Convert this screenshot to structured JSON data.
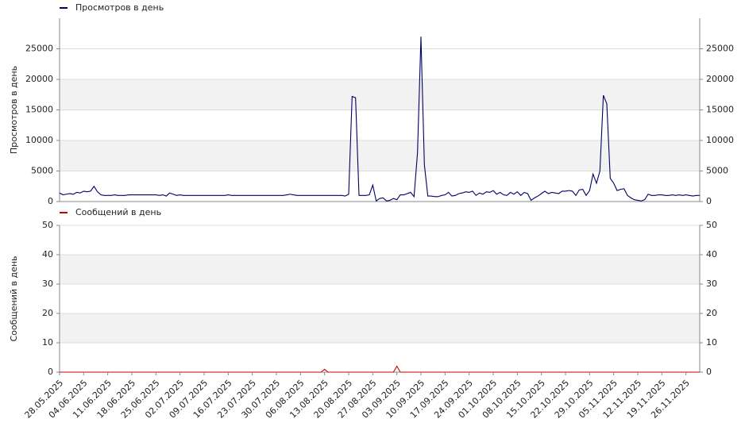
{
  "chart_data": {
    "type": "line",
    "categories": [
      "28.05.2025",
      null,
      null,
      null,
      null,
      null,
      null,
      "04.06.2025",
      null,
      null,
      null,
      null,
      null,
      null,
      "11.06.2025",
      null,
      null,
      null,
      null,
      null,
      null,
      "18.06.2025",
      null,
      null,
      null,
      null,
      null,
      null,
      "25.06.2025",
      null,
      null,
      null,
      null,
      null,
      null,
      "02.07.2025",
      null,
      null,
      null,
      null,
      null,
      null,
      "09.07.2025",
      null,
      null,
      null,
      null,
      null,
      null,
      "16.07.2025",
      null,
      null,
      null,
      null,
      null,
      null,
      "23.07.2025",
      null,
      null,
      null,
      null,
      null,
      null,
      "30.07.2025",
      null,
      null,
      null,
      null,
      null,
      null,
      "06.08.2025",
      null,
      null,
      null,
      null,
      null,
      null,
      "13.08.2025",
      null,
      null,
      null,
      null,
      null,
      null,
      "20.08.2025",
      null,
      null,
      null,
      null,
      null,
      null,
      "27.08.2025",
      null,
      null,
      null,
      null,
      null,
      null,
      "03.09.2025",
      null,
      null,
      null,
      null,
      null,
      null,
      "10.09.2025",
      null,
      null,
      null,
      null,
      null,
      null,
      "17.09.2025",
      null,
      null,
      null,
      null,
      null,
      null,
      "24.09.2025",
      null,
      null,
      null,
      null,
      null,
      null,
      "01.10.2025",
      null,
      null,
      null,
      null,
      null,
      null,
      "08.10.2025",
      null,
      null,
      null,
      null,
      null,
      null,
      "15.10.2025",
      null,
      null,
      null,
      null,
      null,
      null,
      "22.10.2025",
      null,
      null,
      null,
      null,
      null,
      null,
      "29.10.2025",
      null,
      null,
      null,
      null,
      null,
      null,
      "05.11.2025",
      null,
      null,
      null,
      null,
      null,
      null,
      "12.11.2025",
      null,
      null,
      null,
      null,
      null,
      null,
      "19.11.2025",
      null,
      null,
      null,
      null,
      null,
      null,
      "26.11.2025",
      null,
      null,
      null,
      null
    ],
    "panels": [
      {
        "ylabel": "Просмотров в день",
        "ylim": [
          0,
          30000
        ],
        "yticks": [
          0,
          5000,
          10000,
          15000,
          20000,
          25000
        ],
        "series": [
          {
            "name": "Просмотров в день",
            "color": "#000066",
            "values": [
              1400,
              1100,
              1200,
              1300,
              1200,
              1500,
              1400,
              1700,
              1600,
              1700,
              2500,
              1600,
              1100,
              1000,
              1000,
              1000,
              1100,
              1000,
              1000,
              1000,
              1100,
              1100,
              1100,
              1100,
              1100,
              1100,
              1100,
              1100,
              1100,
              1000,
              1100,
              900,
              1400,
              1200,
              1000,
              1100,
              1000,
              1000,
              1000,
              1000,
              1000,
              1000,
              1000,
              1000,
              1000,
              1000,
              1000,
              1000,
              1000,
              1100,
              1000,
              1000,
              1000,
              1000,
              1000,
              1000,
              1000,
              1000,
              1000,
              1000,
              1000,
              1000,
              1000,
              1000,
              1000,
              1000,
              1100,
              1200,
              1100,
              1000,
              1000,
              1000,
              1000,
              1000,
              1000,
              1000,
              1000,
              1000,
              1000,
              1000,
              1000,
              1000,
              1000,
              900,
              1200,
              17200,
              17000,
              1000,
              1000,
              1000,
              1100,
              2700,
              100,
              500,
              600,
              100,
              200,
              500,
              300,
              1100,
              1100,
              1300,
              1500,
              800,
              8000,
              27000,
              6000,
              900,
              900,
              800,
              800,
              1000,
              1100,
              1500,
              900,
              1000,
              1300,
              1400,
              1600,
              1500,
              1700,
              1000,
              1400,
              1200,
              1600,
              1500,
              1800,
              1200,
              1500,
              1100,
              1000,
              1500,
              1200,
              1600,
              1000,
              1500,
              1300,
              200,
              600,
              900,
              1300,
              1700,
              1300,
              1500,
              1400,
              1300,
              1700,
              1700,
              1800,
              1700,
              1000,
              1900,
              2000,
              1000,
              1800,
              4500,
              3000,
              5000,
              17400,
              16000,
              3800,
              3000,
              1800,
              2000,
              2100,
              1000,
              600,
              300,
              200,
              100,
              300,
              1200,
              1000,
              1000,
              1100,
              1100,
              1000,
              1000,
              1100,
              1000,
              1100,
              1000,
              1100,
              1000,
              900,
              1000,
              1000
            ]
          }
        ]
      },
      {
        "ylabel": "Сообщений в день",
        "ylim": [
          0,
          50
        ],
        "yticks": [
          0,
          10,
          20,
          30,
          40,
          50
        ],
        "series": [
          {
            "name": "Сообщений в день",
            "color": "#cc0000",
            "values": [
              0,
              0,
              0,
              0,
              0,
              0,
              0,
              0,
              0,
              0,
              0,
              0,
              0,
              0,
              0,
              0,
              0,
              0,
              0,
              0,
              0,
              0,
              0,
              0,
              0,
              0,
              0,
              0,
              0,
              0,
              0,
              0,
              0,
              0,
              0,
              0,
              0,
              0,
              0,
              0,
              0,
              0,
              0,
              0,
              0,
              0,
              0,
              0,
              0,
              0,
              0,
              0,
              0,
              0,
              0,
              0,
              0,
              0,
              0,
              0,
              0,
              0,
              0,
              0,
              0,
              0,
              0,
              0,
              0,
              0,
              0,
              0,
              0,
              0,
              0,
              0,
              0,
              1,
              0,
              0,
              0,
              0,
              0,
              0,
              0,
              0,
              0,
              0,
              0,
              0,
              0,
              0,
              0,
              0,
              0,
              0,
              0,
              0,
              2,
              0,
              0,
              0,
              0,
              0,
              0,
              0,
              0,
              0,
              0,
              0,
              0,
              0,
              0,
              0,
              0,
              0,
              0,
              0,
              0,
              0,
              0,
              0,
              0,
              0,
              0,
              0,
              0,
              0,
              0,
              0,
              0,
              0,
              0,
              0,
              0,
              0,
              0,
              0,
              0,
              0,
              0,
              0,
              0,
              0,
              0,
              0,
              0,
              0,
              0,
              0,
              0,
              0,
              0,
              0,
              0,
              0,
              0,
              0,
              0,
              0,
              0,
              0,
              0,
              0,
              0,
              0,
              0,
              0,
              0,
              0,
              0,
              0,
              0,
              0,
              0,
              0,
              0,
              0,
              0,
              0,
              0,
              0,
              0,
              0,
              0,
              0,
              0
            ]
          }
        ]
      }
    ]
  }
}
